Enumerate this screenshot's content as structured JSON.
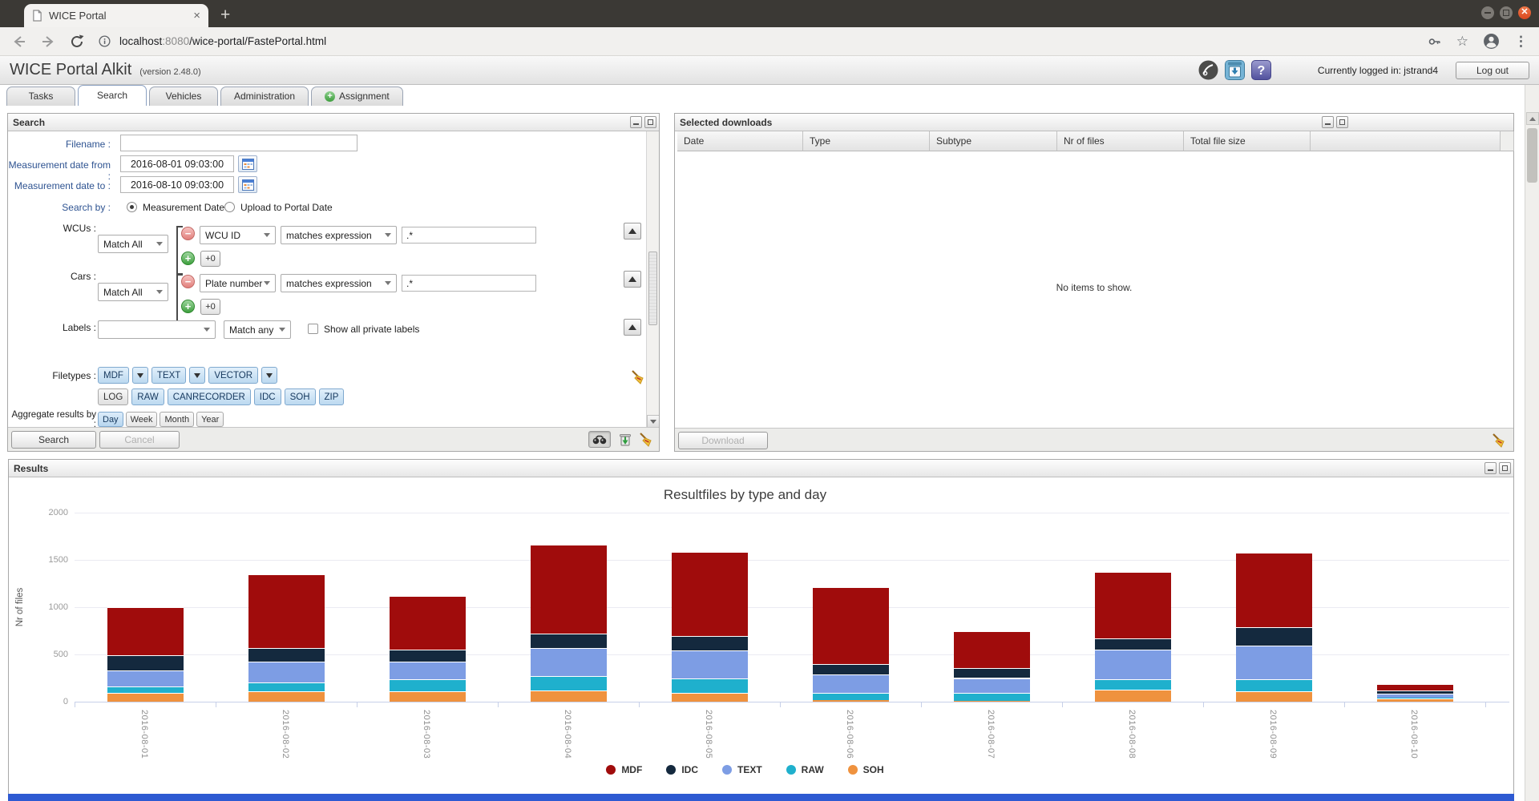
{
  "browser": {
    "tab_title": "WICE Portal",
    "close_tab_glyph": "×",
    "new_tab_glyph": "+",
    "url_host": "localhost",
    "url_port": ":8080",
    "url_path": "/wice-portal/FastePortal.html",
    "star_glyph": "☆",
    "menu_glyph": "⋮"
  },
  "header": {
    "title": "WICE Portal Alkit",
    "version": "(version 2.48.0)",
    "help_glyph": "?",
    "logged_in": "Currently logged in: jstrand4",
    "logout_label": "Log out"
  },
  "nav_tabs": {
    "items": [
      {
        "label": "Tasks",
        "active": false
      },
      {
        "label": "Search",
        "active": true
      },
      {
        "label": "Vehicles",
        "active": false
      },
      {
        "label": "Administration",
        "active": false
      },
      {
        "label": "Assignment",
        "active": false,
        "icon": "plus-circle"
      }
    ]
  },
  "search_panel": {
    "title": "Search",
    "filename_label": "Filename :",
    "filename_value": "",
    "date_from_label": "Measurement date from :",
    "date_from_value": "2016-08-01 09:03:00",
    "date_to_label": "Measurement date to :",
    "date_to_value": "2016-08-10 09:03:00",
    "search_by_label": "Search by :",
    "search_by_options": [
      "Measurement Date",
      "Upload to Portal Date"
    ],
    "search_by_selected": "Measurement Date",
    "wcus_label": "WCUs :",
    "wcus_match": "Match All",
    "wcus_field": "WCU ID",
    "wcus_operator": "matches expression",
    "wcus_pattern": ".*",
    "wcus_add_count": "+0",
    "cars_label": "Cars :",
    "cars_match": "Match All",
    "cars_field": "Plate number",
    "cars_operator": "matches expression",
    "cars_pattern": ".*",
    "cars_add_count": "+0",
    "labels_label": "Labels :",
    "labels_value": "",
    "labels_match": "Match any",
    "labels_checkbox": "Show all private labels",
    "filetypes_label": "Filetypes :",
    "filetypes_row1": [
      {
        "label": "MDF",
        "selected": true,
        "dropdown": true
      },
      {
        "label": "TEXT",
        "selected": true,
        "dropdown": true
      },
      {
        "label": "VECTOR",
        "selected": true,
        "dropdown": true
      }
    ],
    "filetypes_row2": [
      {
        "label": "LOG",
        "selected": false
      },
      {
        "label": "RAW",
        "selected": true
      },
      {
        "label": "CANRECORDER",
        "selected": true
      },
      {
        "label": "IDC",
        "selected": true
      },
      {
        "label": "SOH",
        "selected": true
      },
      {
        "label": "ZIP",
        "selected": true
      }
    ],
    "aggregate_label": "Aggregate results by :",
    "aggregate_options": [
      {
        "label": "Day",
        "selected": true
      },
      {
        "label": "Week",
        "selected": false
      },
      {
        "label": "Month",
        "selected": false
      },
      {
        "label": "Year",
        "selected": false
      }
    ],
    "search_button": "Search",
    "cancel_button": "Cancel"
  },
  "downloads_panel": {
    "title": "Selected downloads",
    "columns": [
      "Date",
      "Type",
      "Subtype",
      "Nr of files",
      "Total file size"
    ],
    "empty_message": "No items to show.",
    "download_button": "Download"
  },
  "results_panel": {
    "title": "Results"
  },
  "chart_data": {
    "type": "bar",
    "stacked": true,
    "title": "Resultfiles by type and day",
    "xlabel": "",
    "ylabel": "Nr of files",
    "categories": [
      "2016-08-01",
      "2016-08-02",
      "2016-08-03",
      "2016-08-04",
      "2016-08-05",
      "2016-08-06",
      "2016-08-07",
      "2016-08-08",
      "2016-08-09",
      "2016-08-10"
    ],
    "series": [
      {
        "name": "MDF",
        "color": "#a00c0c",
        "values": [
          510,
          785,
          560,
          940,
          890,
          820,
          385,
          705,
          785,
          70
        ]
      },
      {
        "name": "IDC",
        "color": "#14293e",
        "values": [
          160,
          145,
          135,
          155,
          155,
          110,
          110,
          120,
          195,
          30
        ]
      },
      {
        "name": "TEXT",
        "color": "#7d9de4",
        "values": [
          170,
          215,
          185,
          295,
          295,
          195,
          155,
          315,
          355,
          40
        ]
      },
      {
        "name": "RAW",
        "color": "#1fb0cd",
        "values": [
          70,
          95,
          125,
          150,
          150,
          75,
          90,
          110,
          130,
          10
        ]
      },
      {
        "name": "SOH",
        "color": "#ef923e",
        "values": [
          90,
          110,
          110,
          120,
          95,
          15,
          5,
          125,
          110,
          35
        ]
      }
    ],
    "stack_order_bottom_to_top": [
      "SOH",
      "RAW",
      "TEXT",
      "IDC",
      "MDF"
    ],
    "ylim": [
      0,
      2000
    ],
    "yticks": [
      0,
      500,
      1000,
      1500,
      2000
    ],
    "grid": true,
    "legend_position": "bottom"
  }
}
